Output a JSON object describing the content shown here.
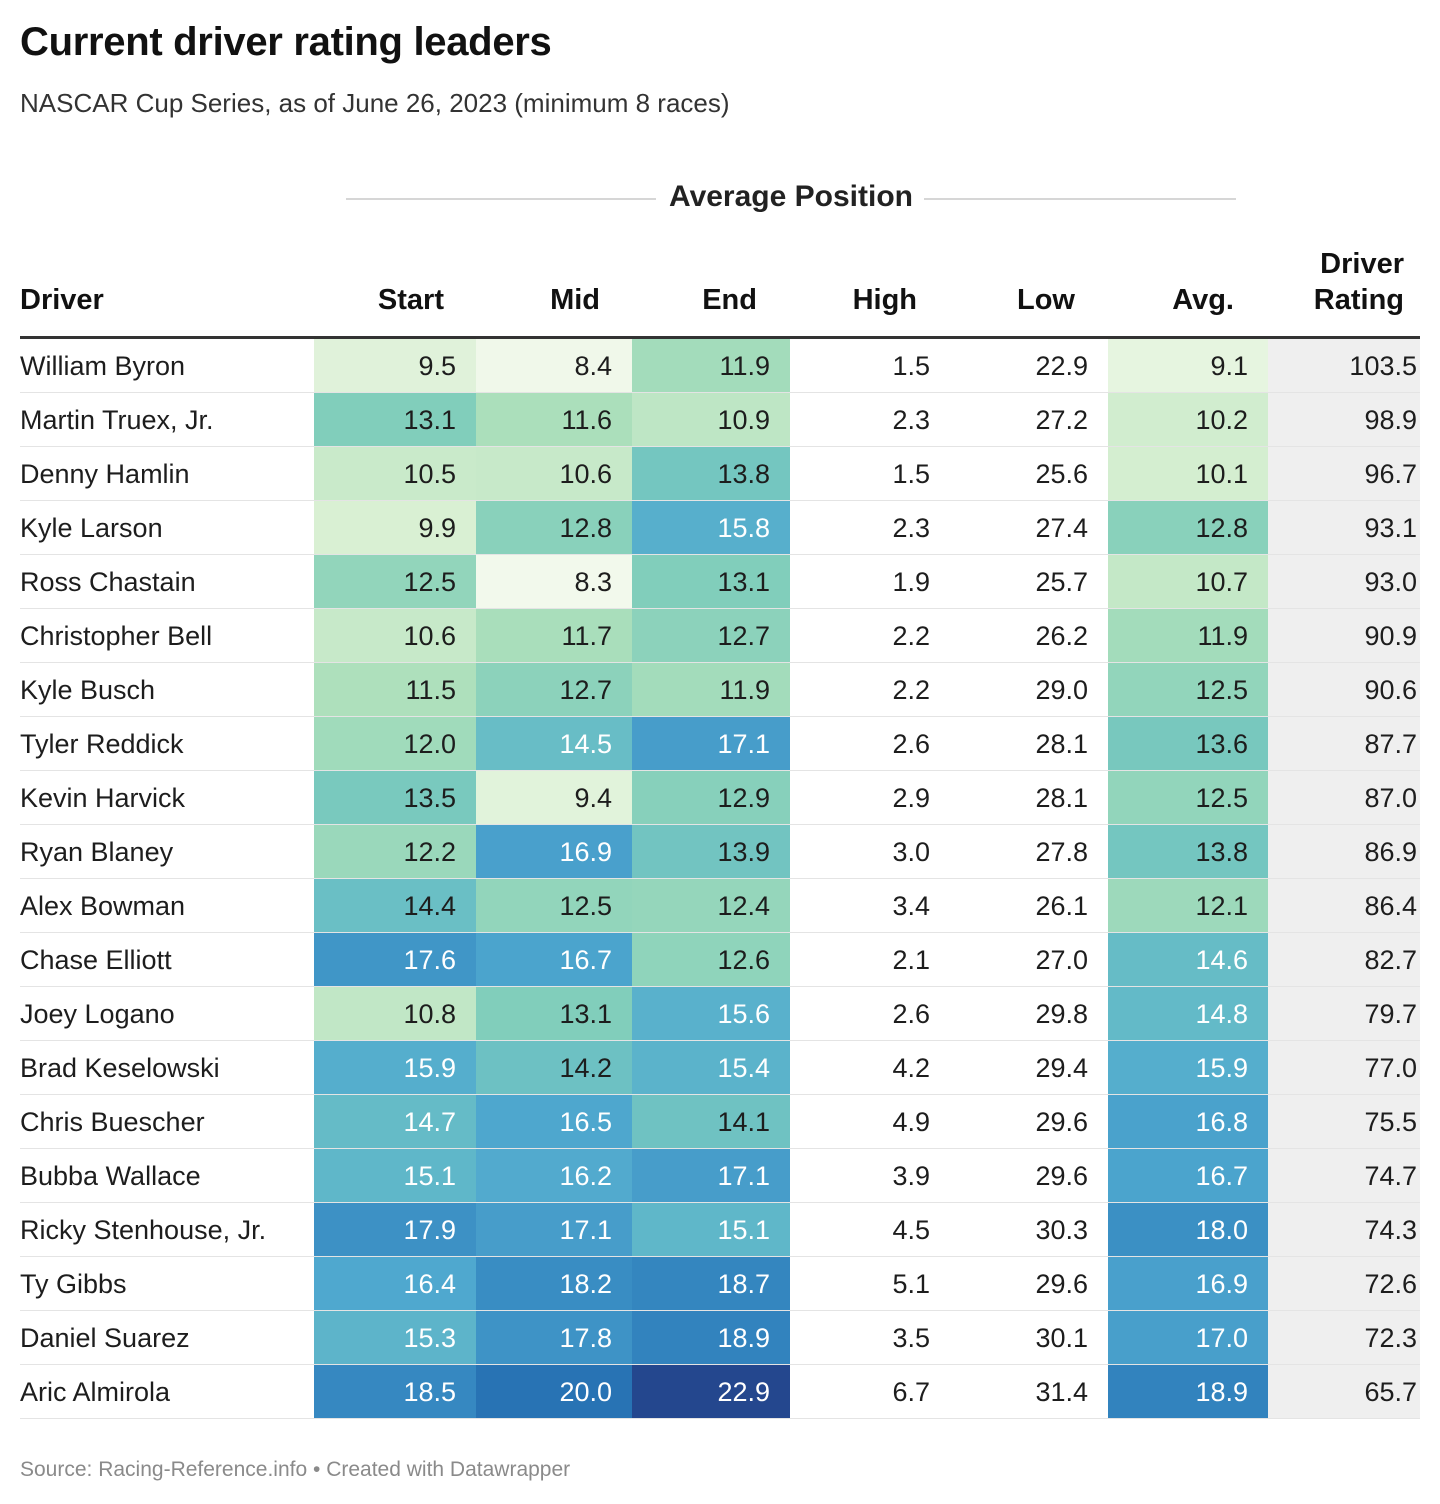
{
  "title": "Current driver rating leaders",
  "subtitle": "NASCAR Cup Series, as of June 26, 2023 (minimum 8 races)",
  "group_header": "Average Position",
  "columns": {
    "driver": "Driver",
    "start": "Start",
    "mid": "Mid",
    "end": "End",
    "high": "High",
    "low": "Low",
    "avg": "Avg.",
    "rating_line1": "Driver",
    "rating_line2": "Rating"
  },
  "footer": {
    "source": "Source: Racing-Reference.info",
    "separator": "•",
    "credit": "Created with Datawrapper"
  },
  "colors": {
    "scale": [
      "#f2f9ec",
      "#d9f0d3",
      "#ade0bb",
      "#7fcdbb",
      "#63bac8",
      "#4fa8cf",
      "#3b8fc4",
      "#2a78b8",
      "#1f62a6",
      "#24478e"
    ],
    "rating_bg": "#efefef",
    "header_rule": "#333333"
  },
  "chart_data": {
    "type": "table",
    "title": "Current driver rating leaders",
    "subtitle": "NASCAR Cup Series, as of June 26, 2023 (minimum 8 races)",
    "columns": [
      "Driver",
      "Start",
      "Mid",
      "End",
      "High",
      "Low",
      "Avg.",
      "Driver Rating"
    ],
    "heatmap_columns": [
      "Start",
      "Mid",
      "End",
      "Avg."
    ],
    "heatmap_range": [
      8.3,
      22.9
    ],
    "rows": [
      {
        "driver": "William Byron",
        "start": "9.5",
        "mid": "8.4",
        "end": "11.9",
        "high": "1.5",
        "low": "22.9",
        "avg": "9.1",
        "rating": "103.5"
      },
      {
        "driver": "Martin Truex, Jr.",
        "start": "13.1",
        "mid": "11.6",
        "end": "10.9",
        "high": "2.3",
        "low": "27.2",
        "avg": "10.2",
        "rating": "98.9"
      },
      {
        "driver": "Denny Hamlin",
        "start": "10.5",
        "mid": "10.6",
        "end": "13.8",
        "high": "1.5",
        "low": "25.6",
        "avg": "10.1",
        "rating": "96.7"
      },
      {
        "driver": "Kyle Larson",
        "start": "9.9",
        "mid": "12.8",
        "end": "15.8",
        "high": "2.3",
        "low": "27.4",
        "avg": "12.8",
        "rating": "93.1"
      },
      {
        "driver": "Ross Chastain",
        "start": "12.5",
        "mid": "8.3",
        "end": "13.1",
        "high": "1.9",
        "low": "25.7",
        "avg": "10.7",
        "rating": "93.0"
      },
      {
        "driver": "Christopher Bell",
        "start": "10.6",
        "mid": "11.7",
        "end": "12.7",
        "high": "2.2",
        "low": "26.2",
        "avg": "11.9",
        "rating": "90.9"
      },
      {
        "driver": "Kyle Busch",
        "start": "11.5",
        "mid": "12.7",
        "end": "11.9",
        "high": "2.2",
        "low": "29.0",
        "avg": "12.5",
        "rating": "90.6"
      },
      {
        "driver": "Tyler Reddick",
        "start": "12.0",
        "mid": "14.5",
        "end": "17.1",
        "high": "2.6",
        "low": "28.1",
        "avg": "13.6",
        "rating": "87.7"
      },
      {
        "driver": "Kevin Harvick",
        "start": "13.5",
        "mid": "9.4",
        "end": "12.9",
        "high": "2.9",
        "low": "28.1",
        "avg": "12.5",
        "rating": "87.0"
      },
      {
        "driver": "Ryan Blaney",
        "start": "12.2",
        "mid": "16.9",
        "end": "13.9",
        "high": "3.0",
        "low": "27.8",
        "avg": "13.8",
        "rating": "86.9"
      },
      {
        "driver": "Alex Bowman",
        "start": "14.4",
        "mid": "12.5",
        "end": "12.4",
        "high": "3.4",
        "low": "26.1",
        "avg": "12.1",
        "rating": "86.4"
      },
      {
        "driver": "Chase Elliott",
        "start": "17.6",
        "mid": "16.7",
        "end": "12.6",
        "high": "2.1",
        "low": "27.0",
        "avg": "14.6",
        "rating": "82.7"
      },
      {
        "driver": "Joey Logano",
        "start": "10.8",
        "mid": "13.1",
        "end": "15.6",
        "high": "2.6",
        "low": "29.8",
        "avg": "14.8",
        "rating": "79.7"
      },
      {
        "driver": "Brad Keselowski",
        "start": "15.9",
        "mid": "14.2",
        "end": "15.4",
        "high": "4.2",
        "low": "29.4",
        "avg": "15.9",
        "rating": "77.0"
      },
      {
        "driver": "Chris Buescher",
        "start": "14.7",
        "mid": "16.5",
        "end": "14.1",
        "high": "4.9",
        "low": "29.6",
        "avg": "16.8",
        "rating": "75.5"
      },
      {
        "driver": "Bubba Wallace",
        "start": "15.1",
        "mid": "16.2",
        "end": "17.1",
        "high": "3.9",
        "low": "29.6",
        "avg": "16.7",
        "rating": "74.7"
      },
      {
        "driver": "Ricky Stenhouse, Jr.",
        "start": "17.9",
        "mid": "17.1",
        "end": "15.1",
        "high": "4.5",
        "low": "30.3",
        "avg": "18.0",
        "rating": "74.3"
      },
      {
        "driver": "Ty Gibbs",
        "start": "16.4",
        "mid": "18.2",
        "end": "18.7",
        "high": "5.1",
        "low": "29.6",
        "avg": "16.9",
        "rating": "72.6"
      },
      {
        "driver": "Daniel Suarez",
        "start": "15.3",
        "mid": "17.8",
        "end": "18.9",
        "high": "3.5",
        "low": "30.1",
        "avg": "17.0",
        "rating": "72.3"
      },
      {
        "driver": "Aric Almirola",
        "start": "18.5",
        "mid": "20.0",
        "end": "22.9",
        "high": "6.7",
        "low": "31.4",
        "avg": "18.9",
        "rating": "65.7"
      }
    ]
  }
}
